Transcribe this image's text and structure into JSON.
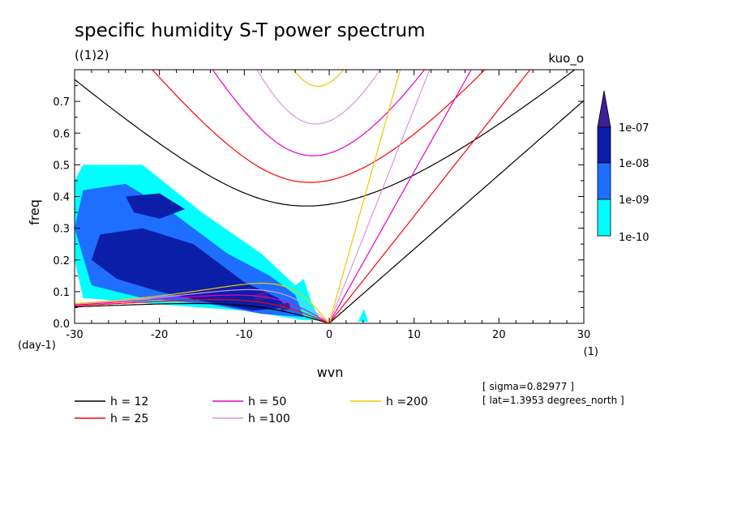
{
  "title": "specific humidity S-T power spectrum",
  "subtitle": "((1)2)",
  "top_right_label": "kuo_o",
  "notes": [
    "[ sigma=0.82977 ]",
    "[ lat=1.3953 degrees_north ]"
  ],
  "chart_data": {
    "type": "heatmap",
    "xlabel": "wvn",
    "x_unit": "(1)",
    "ylabel": "freq",
    "y_unit": "(day-1)",
    "xlim": [
      -30,
      30
    ],
    "ylim": [
      0,
      0.8
    ],
    "x_ticks": [
      -30,
      -20,
      -10,
      0,
      10,
      20,
      30
    ],
    "x_tick_labels": [
      "-30",
      "-20",
      "-10",
      "0",
      "10",
      "20",
      "30"
    ],
    "y_ticks": [
      0,
      0.1,
      0.2,
      0.3,
      0.4,
      0.5,
      0.6,
      0.7
    ],
    "y_tick_labels": [
      "0.0",
      "0.1",
      "0.2",
      "0.3",
      "0.4",
      "0.5",
      "0.6",
      "0.7"
    ],
    "colorbar": {
      "levels": [
        "1e-10",
        "1e-09",
        "1e-08",
        "1e-07"
      ],
      "colors": [
        "#00ffff",
        "#1e6fff",
        "#0a1ea8",
        "#3c1e96"
      ]
    },
    "power_regions": [
      {
        "level": 0,
        "polygon": [
          [
            -29,
            0.5
          ],
          [
            -22,
            0.5
          ],
          [
            -15,
            0.35
          ],
          [
            -8,
            0.22
          ],
          [
            -4,
            0.12
          ],
          [
            -3,
            0.14
          ],
          [
            -2,
            0.06
          ],
          [
            -1,
            0.01
          ],
          [
            -3,
            0.01
          ],
          [
            -10,
            0.04
          ],
          [
            -20,
            0.06
          ],
          [
            -29,
            0.08
          ],
          [
            -30,
            0.2
          ],
          [
            -30,
            0.45
          ]
        ]
      },
      {
        "level": 0,
        "polygon": [
          [
            3.4,
            0.005
          ],
          [
            4.6,
            0.005
          ],
          [
            4.1,
            0.045
          ]
        ]
      },
      {
        "level": 1,
        "polygon": [
          [
            -29,
            0.42
          ],
          [
            -24,
            0.44
          ],
          [
            -19,
            0.36
          ],
          [
            -12,
            0.22
          ],
          [
            -7,
            0.15
          ],
          [
            -4,
            0.09
          ],
          [
            -3,
            0.02
          ],
          [
            -8,
            0.03
          ],
          [
            -14,
            0.06
          ],
          [
            -22,
            0.08
          ],
          [
            -28,
            0.12
          ],
          [
            -30,
            0.3
          ]
        ]
      },
      {
        "level": 2,
        "polygon": [
          [
            -27,
            0.28
          ],
          [
            -22,
            0.3
          ],
          [
            -16,
            0.25
          ],
          [
            -12,
            0.17
          ],
          [
            -10,
            0.13
          ],
          [
            -6,
            0.08
          ],
          [
            -5,
            0.05
          ],
          [
            -9,
            0.04
          ],
          [
            -15,
            0.07
          ],
          [
            -20,
            0.1
          ],
          [
            -25,
            0.14
          ],
          [
            -28,
            0.2
          ]
        ]
      },
      {
        "level": 2,
        "polygon": [
          [
            -24,
            0.4
          ],
          [
            -20,
            0.41
          ],
          [
            -17,
            0.36
          ],
          [
            -20,
            0.33
          ],
          [
            -23,
            0.35
          ]
        ]
      },
      {
        "level": 3,
        "polygon": [
          [
            -9,
            0.09
          ],
          [
            -7.5,
            0.1
          ],
          [
            -7,
            0.08
          ],
          [
            -8.5,
            0.07
          ]
        ]
      },
      {
        "level": 3,
        "polygon": [
          [
            -6,
            0.06
          ],
          [
            -4.8,
            0.065
          ],
          [
            -4.5,
            0.045
          ],
          [
            -5.6,
            0.04
          ]
        ]
      }
    ],
    "dispersion_curves": [
      {
        "h": 12,
        "color": "#000000"
      },
      {
        "h": 25,
        "color": "#ff0000"
      },
      {
        "h": 50,
        "color": "#e600c8"
      },
      {
        "h": 100,
        "color": "#dc96dc"
      },
      {
        "h": 200,
        "color": "#f0c800"
      }
    ],
    "legend": [
      {
        "label": "h = 12",
        "color": "#000000"
      },
      {
        "label": "h = 25",
        "color": "#ff0000"
      },
      {
        "label": "h = 50",
        "color": "#e600c8"
      },
      {
        "label": "h =100",
        "color": "#dc96dc"
      },
      {
        "label": "h =200",
        "color": "#f0c800"
      }
    ]
  }
}
